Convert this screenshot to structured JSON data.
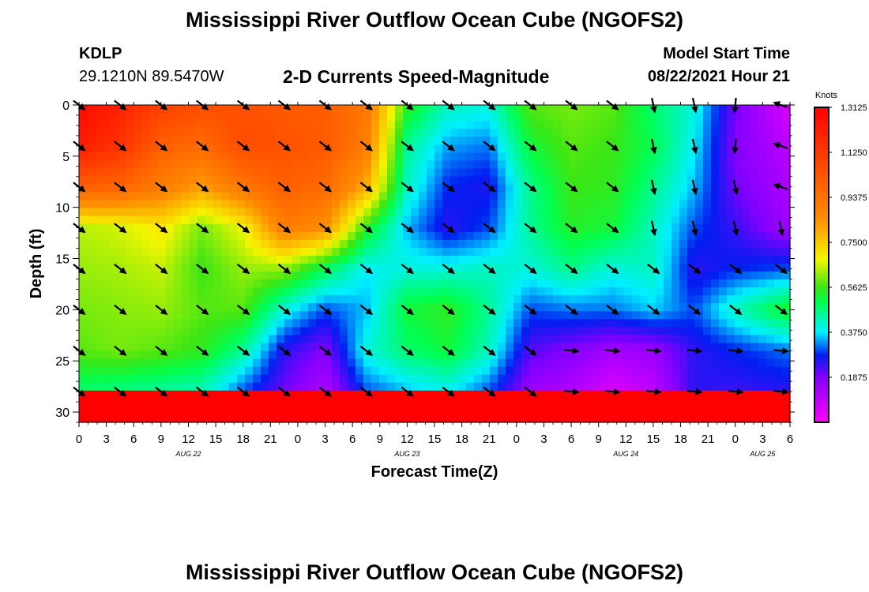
{
  "page": {
    "title_top": "Mississippi River Outflow Ocean Cube (NGOFS2)",
    "title_bottom": "Mississippi River Outflow Ocean Cube (NGOFS2)",
    "station_id": "KDLP",
    "station_coords": "29.1210N  89.5470W",
    "product": "2-D Currents Speed-Magnitude",
    "model_start_label": "Model Start Time",
    "model_start_value": "08/22/2021 Hour 21"
  },
  "chart_data": {
    "type": "heatmap",
    "xlabel": "Forecast Time(Z)",
    "ylabel": "Depth (ft)",
    "x_tick_labels": [
      "0",
      "3",
      "6",
      "9",
      "12",
      "15",
      "18",
      "21",
      "0",
      "3",
      "6",
      "9",
      "12",
      "15",
      "18",
      "21",
      "0",
      "3",
      "6",
      "9",
      "12",
      "15",
      "18",
      "21",
      "0",
      "3",
      "6"
    ],
    "x_range_hours": [
      0,
      78
    ],
    "date_labels": [
      {
        "label": "AUG 22",
        "hour": 12
      },
      {
        "label": "AUG 23",
        "hour": 36
      },
      {
        "label": "AUG 24",
        "hour": 60
      },
      {
        "label": "AUG 25",
        "hour": 75
      }
    ],
    "y_ticks": [
      0,
      5,
      10,
      15,
      20,
      25,
      30
    ],
    "ylim": [
      31,
      0
    ],
    "colorbar": {
      "title": "Knots",
      "ticks": [
        "1.3125",
        "1.1250",
        "0.9375",
        "0.7500",
        "0.5625",
        "0.3750",
        "0.1875"
      ],
      "range": [
        0,
        1.3125
      ]
    },
    "vector_depths": [
      0,
      4,
      8,
      12,
      16,
      20,
      24,
      28
    ],
    "vector_times": [
      0,
      4.5,
      9,
      13.5,
      18,
      22.5,
      27,
      31.5,
      36,
      40.5,
      45,
      49.5,
      54,
      58.5,
      63,
      67.5,
      72,
      77
    ],
    "speed_key_times": [
      0,
      4.5,
      9,
      13.5,
      18,
      22.5,
      27,
      31.5,
      36,
      40.5,
      45,
      49.5,
      54,
      58.5,
      63,
      67.5,
      72,
      78
    ],
    "speed_key_depths": [
      0,
      4,
      8,
      12,
      16,
      20,
      24,
      28,
      31
    ],
    "speed_key_values": [
      [
        1.28,
        1.22,
        1.0,
        0.64,
        0.62,
        0.6,
        0.58,
        0.48
      ],
      [
        1.2,
        1.15,
        0.98,
        0.66,
        0.63,
        0.61,
        0.6,
        0.46
      ],
      [
        1.1,
        1.0,
        0.9,
        0.7,
        0.65,
        0.62,
        0.58,
        0.44
      ],
      [
        1.06,
        0.96,
        0.82,
        0.6,
        0.56,
        0.58,
        0.55,
        0.42
      ],
      [
        1.05,
        1.06,
        0.92,
        0.68,
        0.62,
        0.58,
        0.45,
        0.3
      ],
      [
        1.02,
        1.04,
        1.0,
        0.9,
        0.62,
        0.4,
        0.25,
        0.2
      ],
      [
        1.0,
        1.02,
        0.96,
        0.85,
        0.5,
        0.3,
        0.18,
        0.12
      ],
      [
        0.92,
        0.9,
        0.8,
        0.55,
        0.38,
        0.35,
        0.4,
        0.3
      ],
      [
        0.55,
        0.45,
        0.42,
        0.35,
        0.4,
        0.52,
        0.48,
        0.35
      ],
      [
        0.42,
        0.34,
        0.28,
        0.25,
        0.4,
        0.55,
        0.52,
        0.38
      ],
      [
        0.4,
        0.32,
        0.26,
        0.3,
        0.42,
        0.45,
        0.42,
        0.3
      ],
      [
        0.58,
        0.52,
        0.46,
        0.45,
        0.4,
        0.3,
        0.22,
        0.15
      ],
      [
        0.6,
        0.58,
        0.56,
        0.54,
        0.46,
        0.32,
        0.18,
        0.12
      ],
      [
        0.58,
        0.56,
        0.55,
        0.52,
        0.4,
        0.32,
        0.14,
        0.05
      ],
      [
        0.48,
        0.5,
        0.46,
        0.42,
        0.42,
        0.36,
        0.15,
        0.1
      ],
      [
        0.4,
        0.38,
        0.35,
        0.3,
        0.25,
        0.3,
        0.25,
        0.25
      ],
      [
        0.2,
        0.18,
        0.2,
        0.24,
        0.28,
        0.42,
        0.28,
        0.24
      ],
      [
        0.05,
        0.1,
        0.12,
        0.14,
        0.3,
        0.54,
        0.32,
        0.25
      ]
    ]
  }
}
